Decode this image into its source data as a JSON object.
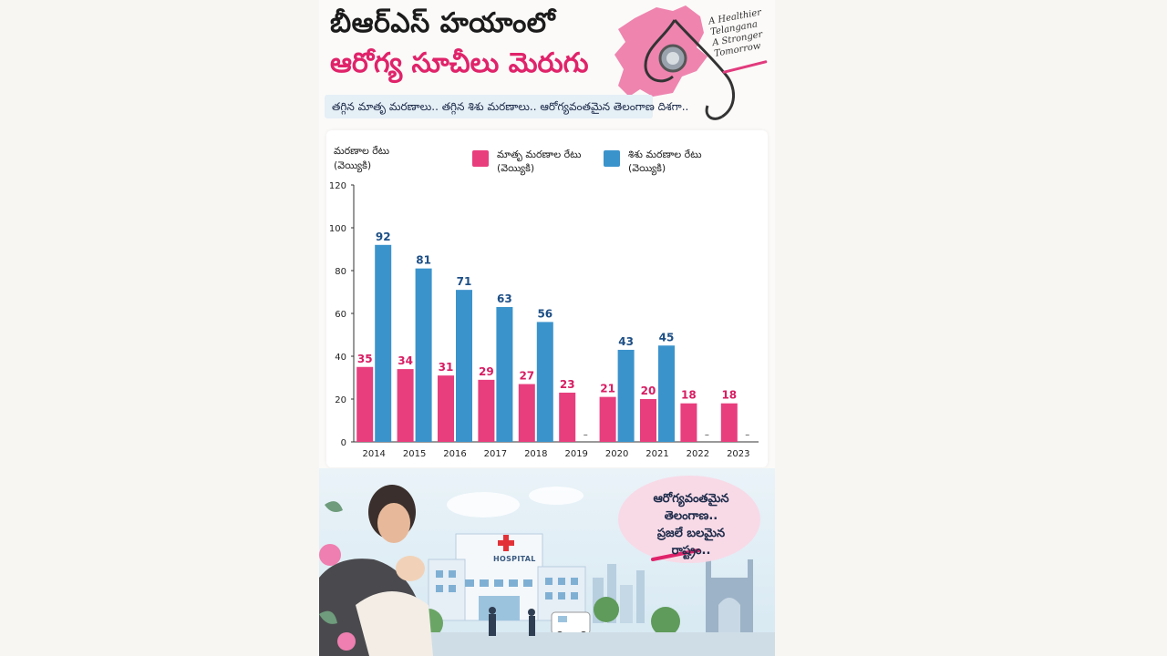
{
  "header": {
    "title_line1": "బీఆర్ఎస్ హయాంలో",
    "title_line2": "ఆరోగ్య సూచీలు మెరుగు",
    "tagline": [
      "A Healthier",
      "Telangana",
      "A Stronger",
      "Tomorrow"
    ],
    "subtitle": "తగ్గిన మాతృ మరణాలు.. తగ్గిన శిశు మరణాలు.. ఆరోగ్యవంతమైన తెలంగాణ దిశగా.."
  },
  "chart_data": {
    "type": "bar",
    "ylabel_line1": "మరణాల రేటు",
    "ylabel_line2": "(వెయ్యికి)",
    "categories": [
      "2014",
      "2015",
      "2016",
      "2017",
      "2018",
      "2019",
      "2020",
      "2021",
      "2022",
      "2023"
    ],
    "yticks": [
      0,
      20,
      40,
      60,
      80,
      100,
      120
    ],
    "ylim": [
      0,
      120
    ],
    "legend_placement": "top",
    "grid": false,
    "series": [
      {
        "name_line1": "మాతృ మరణాల రేటు",
        "name_line2": "(వెయ్యికి)",
        "color": "#e83e7e",
        "label_color": "#d81d62",
        "values": [
          35,
          34,
          31,
          29,
          27,
          23,
          21,
          20,
          18,
          18
        ]
      },
      {
        "name_line1": "శిశు మరణాల రేటు",
        "name_line2": "(వెయ్యికి)",
        "color": "#3b93cc",
        "label_color": "#1d4f86",
        "values": [
          92,
          81,
          71,
          63,
          56,
          null,
          43,
          45,
          null,
          null
        ]
      }
    ],
    "missing_marker": "–"
  },
  "bubble": {
    "lines": [
      "ఆరోగ్యవంతమైన",
      "తెలంగాణ..",
      "ప్రజలే బలమైన",
      "రాష్ట్రం.."
    ]
  },
  "scene": {
    "hospital_sign": "HOSPITAL"
  },
  "colors": {
    "accent_pink": "#e0236a",
    "maternal_bar": "#e83e7e",
    "infant_bar": "#3b93cc"
  }
}
